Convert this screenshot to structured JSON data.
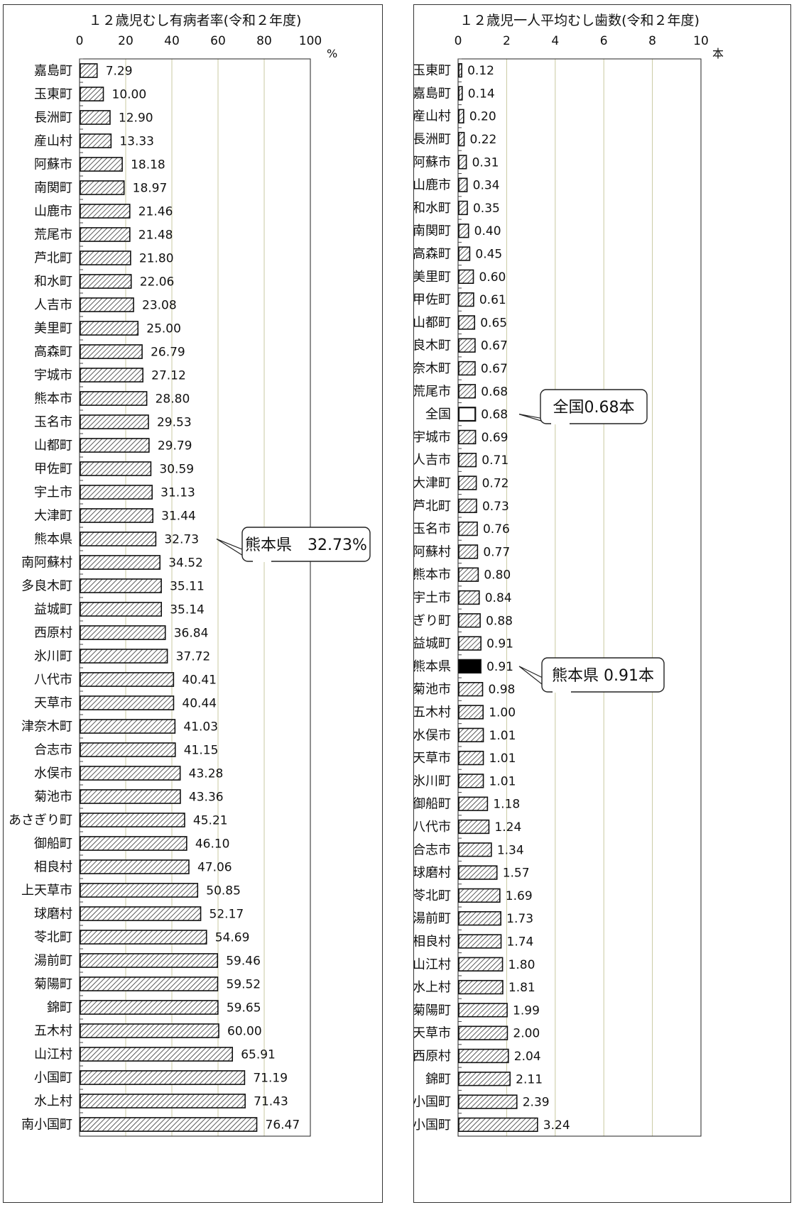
{
  "chart_data": [
    {
      "type": "bar",
      "orientation": "horizontal",
      "title": "１２歳児むし有病者率(令和２年度)",
      "unit": "%",
      "xlim": [
        0,
        100
      ],
      "ticks": [
        0,
        20,
        40,
        60,
        80,
        100
      ],
      "grid": true,
      "categories": [
        "嘉島町",
        "玉東町",
        "長洲町",
        "産山村",
        "阿蘇市",
        "南関町",
        "山鹿市",
        "荒尾市",
        "芦北町",
        "和水町",
        "人吉市",
        "美里町",
        "高森町",
        "宇城市",
        "熊本市",
        "玉名市",
        "山都町",
        "甲佐町",
        "宇土市",
        "大津町",
        "熊本県",
        "南阿蘇村",
        "多良木町",
        "益城町",
        "西原村",
        "氷川町",
        "八代市",
        "天草市",
        "津奈木町",
        "合志市",
        "水俣市",
        "菊池市",
        "あさぎり町",
        "御船町",
        "相良村",
        "上天草市",
        "球磨村",
        "苓北町",
        "湯前町",
        "菊陽町",
        "錦町",
        "五木村",
        "山江村",
        "小国町",
        "水上村",
        "南小国町"
      ],
      "values": [
        7.29,
        10.0,
        12.9,
        13.33,
        18.18,
        18.97,
        21.46,
        21.48,
        21.8,
        22.06,
        23.08,
        25.0,
        26.79,
        27.12,
        28.8,
        29.53,
        29.79,
        30.59,
        31.13,
        31.44,
        32.73,
        34.52,
        35.11,
        35.14,
        36.84,
        37.72,
        40.41,
        40.44,
        41.03,
        41.15,
        43.28,
        43.36,
        45.21,
        46.1,
        47.06,
        50.85,
        52.17,
        54.69,
        59.46,
        59.52,
        59.65,
        60.0,
        65.91,
        71.19,
        71.43,
        76.47
      ],
      "value_labels": [
        "7.29",
        "10.00",
        "12.90",
        "13.33",
        "18.18",
        "18.97",
        "21.46",
        "21.48",
        "21.80",
        "22.06",
        "23.08",
        "25.00",
        "26.79",
        "27.12",
        "28.80",
        "29.53",
        "29.79",
        "30.59",
        "31.13",
        "31.44",
        "32.73",
        "34.52",
        "35.11",
        "35.14",
        "36.84",
        "37.72",
        "40.41",
        "40.44",
        "41.03",
        "41.15",
        "43.28",
        "43.36",
        "45.21",
        "46.10",
        "47.06",
        "50.85",
        "52.17",
        "54.69",
        "59.46",
        "59.52",
        "59.65",
        "60.00",
        "65.91",
        "71.19",
        "71.43",
        "76.47"
      ],
      "annotations": [
        {
          "text": "熊本県　32.73%",
          "target": "熊本県"
        }
      ]
    },
    {
      "type": "bar",
      "orientation": "horizontal",
      "title": "１２歳児一人平均むし歯数(令和２年度)",
      "unit": "本",
      "xlim": [
        0,
        10
      ],
      "ticks": [
        0,
        2,
        4,
        6,
        8,
        10
      ],
      "grid": true,
      "categories": [
        "玉東町",
        "嘉島町",
        "産山村",
        "長洲町",
        "阿蘇市",
        "山鹿市",
        "和水町",
        "南関町",
        "高森町",
        "美里町",
        "甲佐町",
        "山都町",
        "多良木町",
        "津奈木町",
        "荒尾市",
        "全国",
        "宇城市",
        "人吉市",
        "大津町",
        "芦北町",
        "玉名市",
        "南阿蘇村",
        "熊本市",
        "宇土市",
        "あさぎり町",
        "益城町",
        "熊本県",
        "菊池市",
        "五木村",
        "水俣市",
        "天草市",
        "氷川町",
        "御船町",
        "八代市",
        "合志市",
        "球磨村",
        "苓北町",
        "湯前町",
        "相良村",
        "山江村",
        "水上村",
        "菊陽町",
        "上天草市",
        "西原村",
        "錦町",
        "小国町",
        "南小国町"
      ],
      "values": [
        0.12,
        0.14,
        0.2,
        0.22,
        0.31,
        0.34,
        0.35,
        0.4,
        0.45,
        0.6,
        0.61,
        0.65,
        0.67,
        0.67,
        0.68,
        0.68,
        0.69,
        0.71,
        0.72,
        0.73,
        0.76,
        0.77,
        0.8,
        0.84,
        0.88,
        0.91,
        0.91,
        0.98,
        1.0,
        1.01,
        1.01,
        1.01,
        1.18,
        1.24,
        1.34,
        1.57,
        1.69,
        1.73,
        1.74,
        1.8,
        1.81,
        1.99,
        2.0,
        2.04,
        2.11,
        2.39,
        3.24
      ],
      "value_labels": [
        "0.12",
        "0.14",
        "0.20",
        "0.22",
        "0.31",
        "0.34",
        "0.35",
        "0.40",
        "0.45",
        "0.60",
        "0.61",
        "0.65",
        "0.67",
        "0.67",
        "0.68",
        "0.68",
        "0.69",
        "0.71",
        "0.72",
        "0.73",
        "0.76",
        "0.77",
        "0.80",
        "0.84",
        "0.88",
        "0.91",
        "0.91",
        "0.98",
        "1.00",
        "1.01",
        "1.01",
        "1.01",
        "1.18",
        "1.24",
        "1.34",
        "1.57",
        "1.69",
        "1.73",
        "1.74",
        "1.80",
        "1.81",
        "1.99",
        "2.00",
        "2.04",
        "2.11",
        "2.39",
        "3.24"
      ],
      "styles": {
        "全国": "outline",
        "熊本県": "solid"
      },
      "annotations": [
        {
          "text": "全国0.68本",
          "target": "全国"
        },
        {
          "text": "熊本県 0.91本",
          "target": "熊本県"
        }
      ]
    }
  ],
  "colors": {
    "bar_stroke": "#111111",
    "hatch": "#333333",
    "grid": "#c9c9a0",
    "solid": "#000000"
  }
}
